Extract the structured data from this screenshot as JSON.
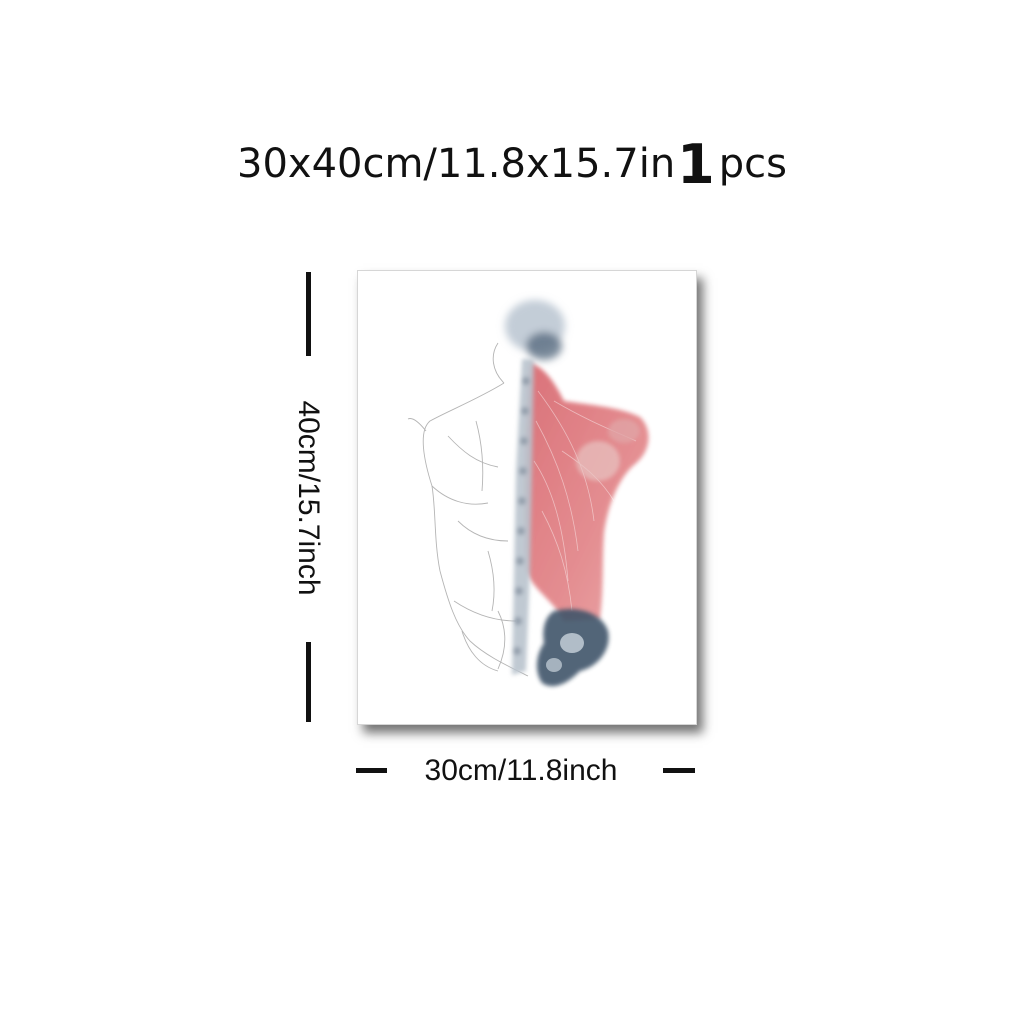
{
  "header": {
    "size_text": "30x40cm/11.8x15.7in",
    "quantity": "1",
    "quantity_unit": "pcs"
  },
  "dimensions": {
    "height_label": "40cm/15.7inch",
    "width_label": "30cm/11.8inch"
  },
  "artwork": {
    "subject": "watercolor anatomical back illustration",
    "colors": {
      "muscle": "#d9666c",
      "bone": "#3f556b",
      "sketch": "#9a9a9a"
    }
  }
}
